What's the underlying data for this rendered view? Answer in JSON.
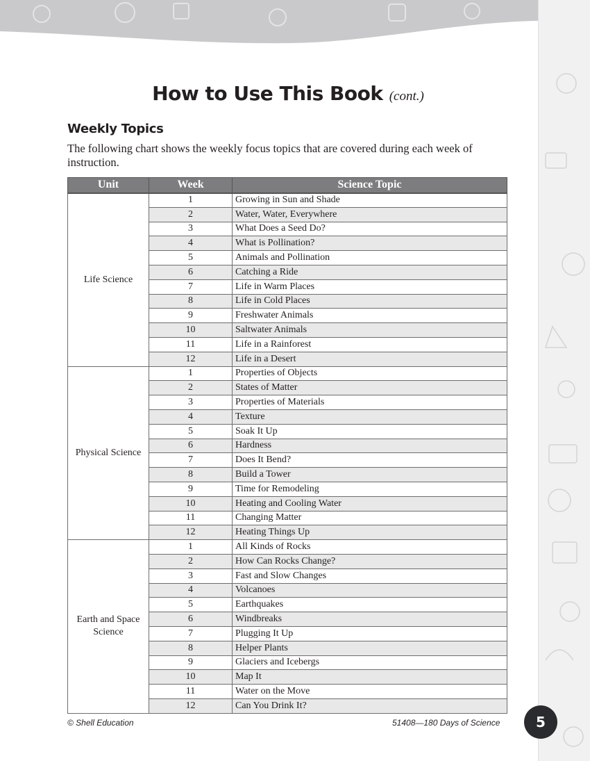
{
  "title": "How to Use This Book",
  "title_suffix": "(cont.)",
  "section_heading": "Weekly Topics",
  "intro": "The following chart shows the weekly focus topics that are covered during each week of instruction.",
  "table": {
    "headers": [
      "Unit",
      "Week",
      "Science Topic"
    ],
    "units": [
      {
        "name": "Life Science",
        "topics": [
          "Growing in Sun and Shade",
          "Water, Water, Everywhere",
          "What Does a Seed Do?",
          "What is Pollination?",
          "Animals and Pollination",
          "Catching a Ride",
          "Life in Warm Places",
          "Life in Cold Places",
          "Freshwater Animals",
          "Saltwater Animals",
          "Life in a Rainforest",
          "Life in a Desert"
        ]
      },
      {
        "name": "Physical Science",
        "topics": [
          "Properties of Objects",
          "States of Matter",
          "Properties of Materials",
          "Texture",
          "Soak It Up",
          "Hardness",
          "Does It Bend?",
          "Build a Tower",
          "Time for Remodeling",
          "Heating and Cooling Water",
          "Changing Matter",
          "Heating Things Up"
        ]
      },
      {
        "name": "Earth and Space Science",
        "topics": [
          "All Kinds of Rocks",
          "How Can Rocks Change?",
          "Fast and Slow Changes",
          "Volcanoes",
          "Earthquakes",
          "Windbreaks",
          "Plugging It Up",
          "Helper Plants",
          "Glaciers and Icebergs",
          "Map It",
          "Water on the Move",
          "Can You Drink It?"
        ]
      }
    ]
  },
  "footer": {
    "left": "© Shell Education",
    "right": "51408—180 Days of Science",
    "page": "5"
  },
  "colors": {
    "header_fill": "#7d7d7f",
    "alt_row": "#e8e8e8",
    "page_badge": "#2a2b2e"
  }
}
